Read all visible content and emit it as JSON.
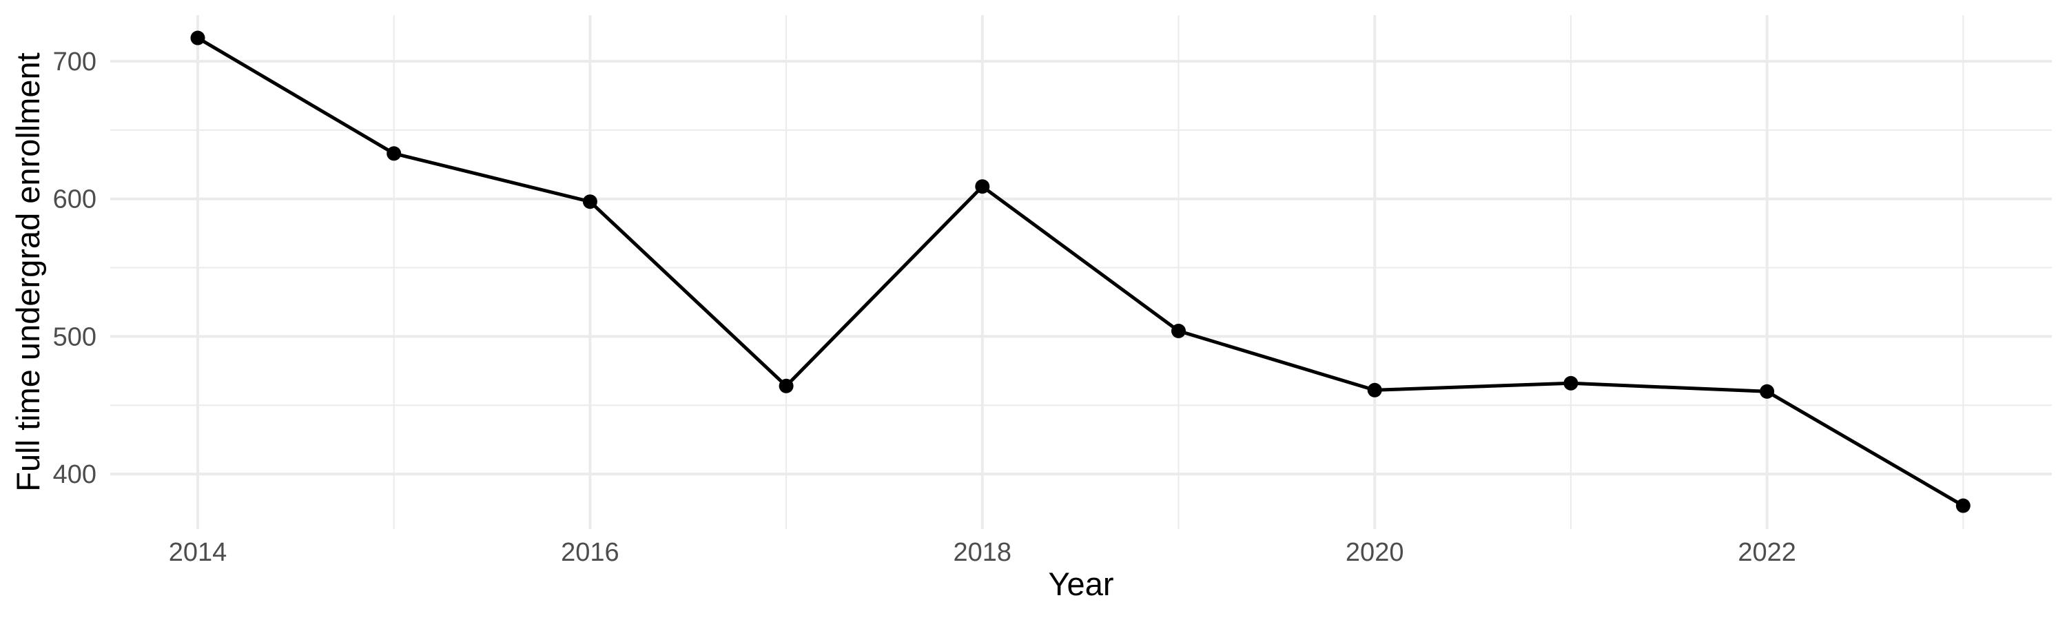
{
  "chart_data": {
    "type": "line",
    "title": "",
    "xlabel": "Year",
    "ylabel": "Full time undergrad enrollment",
    "x": [
      2014,
      2015,
      2016,
      2017,
      2018,
      2019,
      2020,
      2021,
      2022,
      2023
    ],
    "series": [
      {
        "name": "Full time undergrad enrollment",
        "values": [
          717,
          633,
          598,
          464,
          609,
          504,
          461,
          466,
          460,
          377
        ]
      }
    ],
    "x_major_ticks": [
      2014,
      2016,
      2018,
      2020,
      2022
    ],
    "x_minor_ticks": [
      2015,
      2017,
      2019,
      2021,
      2023
    ],
    "x_tick_labels": [
      "2014",
      "2016",
      "2018",
      "2020",
      "2022"
    ],
    "y_major_ticks": [
      400,
      500,
      600,
      700
    ],
    "y_minor_ticks": [
      450,
      550,
      650
    ],
    "y_tick_labels": [
      "400",
      "500",
      "600",
      "700"
    ],
    "xlim": [
      2013.55,
      2023.45
    ],
    "ylim": [
      360,
      733
    ],
    "grid": "on",
    "legend_position": "none",
    "colors": {
      "line": "#000000",
      "point": "#000000",
      "gridline": "#EBEBEB",
      "tick_text": "#4D4D4D",
      "axis_title_text": "#000000",
      "background": "#FFFFFF"
    }
  }
}
